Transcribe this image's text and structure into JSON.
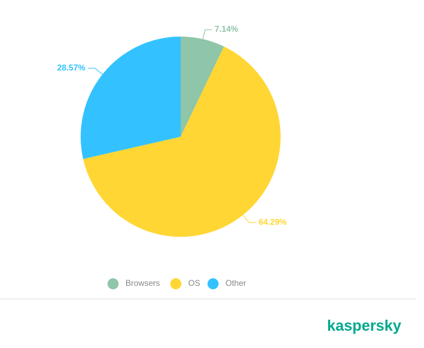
{
  "chart_data": {
    "type": "pie",
    "categories": [
      "Browsers",
      "OS",
      "Other"
    ],
    "values": [
      7.14,
      64.29,
      28.57
    ],
    "value_labels": [
      "7.14%",
      "64.29%",
      "28.57%"
    ],
    "colors": [
      "#8fc5a8",
      "#ffd633",
      "#33c2ff"
    ],
    "legend": "bottom"
  },
  "brand": "kaspersky"
}
